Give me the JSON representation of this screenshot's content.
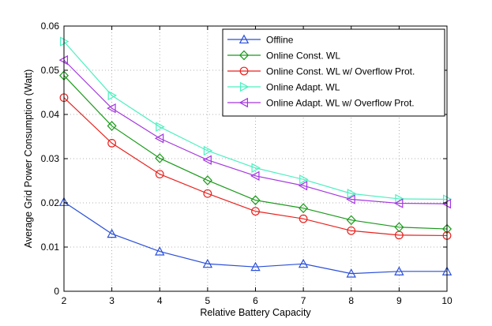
{
  "chart_data": {
    "type": "line",
    "title": "",
    "xlabel": "Relative Battery Capacity",
    "ylabel": "Average Grid Power Consumption (Watt)",
    "xlim": [
      2,
      10
    ],
    "ylim": [
      0,
      0.06
    ],
    "xticks": [
      2,
      3,
      4,
      5,
      6,
      7,
      8,
      9,
      10
    ],
    "yticks": [
      0,
      0.01,
      0.02,
      0.03,
      0.04,
      0.05,
      0.06
    ],
    "ytick_labels": [
      "0",
      "0.01",
      "0.02",
      "0.03",
      "0.04",
      "0.05",
      "0.06"
    ],
    "grid": true,
    "legend_position": "top-right",
    "x": [
      2,
      3,
      4,
      5,
      6,
      7,
      8,
      9,
      10
    ],
    "series": [
      {
        "name": "Offline",
        "color": "#2b4fd8",
        "marker": "triangle-up",
        "values": [
          0.0202,
          0.013,
          0.009,
          0.0062,
          0.0055,
          0.0062,
          0.004,
          0.0045,
          0.0045
        ]
      },
      {
        "name": "Online Const. WL",
        "color": "#1a9a1a",
        "marker": "diamond",
        "values": [
          0.0488,
          0.0374,
          0.0301,
          0.0251,
          0.0206,
          0.0188,
          0.0161,
          0.0145,
          0.0141
        ]
      },
      {
        "name": "Online Const. WL w/ Overflow Prot.",
        "color": "#e8221e",
        "marker": "circle",
        "values": [
          0.0438,
          0.0335,
          0.0265,
          0.0221,
          0.0181,
          0.0164,
          0.0137,
          0.0127,
          0.0126
        ]
      },
      {
        "name": "Online Adapt. WL",
        "color": "#4df0c0",
        "marker": "triangle-right",
        "values": [
          0.0565,
          0.0443,
          0.0372,
          0.0318,
          0.0279,
          0.0253,
          0.0221,
          0.0209,
          0.0208
        ]
      },
      {
        "name": "Online Adapt. WL w/ Overflow Prot.",
        "color": "#a336e0",
        "marker": "triangle-left",
        "values": [
          0.0523,
          0.0414,
          0.0346,
          0.0297,
          0.0261,
          0.0239,
          0.0208,
          0.0199,
          0.0198
        ]
      }
    ]
  }
}
